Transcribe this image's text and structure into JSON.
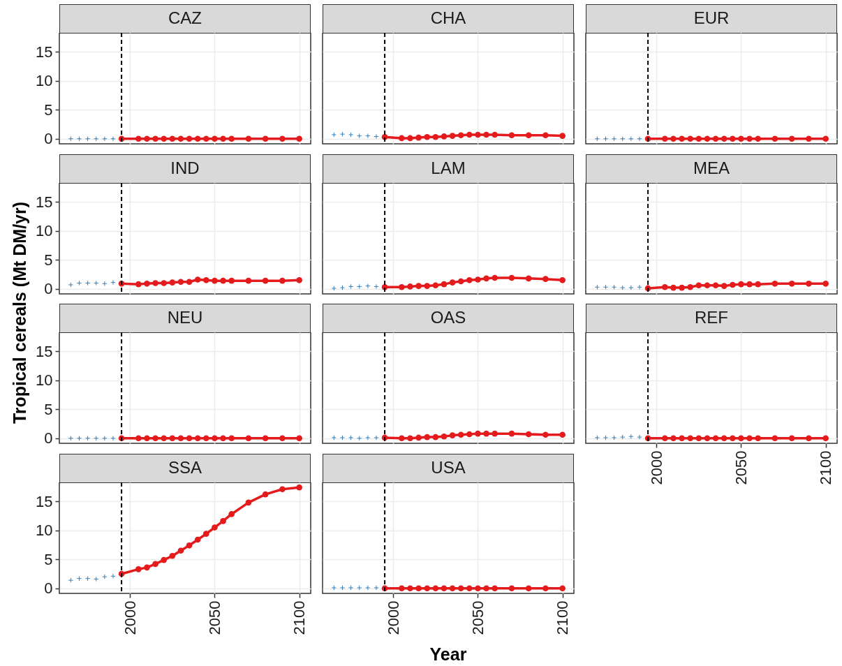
{
  "chart_data": [
    {
      "type": "line",
      "title": "CAZ",
      "ylabel": "Tropical cereals (Mt DM/yr)",
      "xlim": [
        1958.25,
        2106.75
      ],
      "xticks": [
        2000,
        2050,
        2100
      ],
      "ylim": [
        -0.87,
        18.27
      ],
      "yticks": [
        0,
        5,
        10,
        15
      ],
      "grid": true,
      "tick_labels": "y",
      "ref_lines": [
        {
          "axis": "x",
          "value": 1995,
          "color": "#000000",
          "line_style": "dashed"
        }
      ],
      "series": [
        {
          "type": "scatter",
          "marker": "cross",
          "color": "#377eb8",
          "x": [
            1965,
            1970,
            1975,
            1980,
            1985,
            1990
          ],
          "values": [
            0,
            0,
            0,
            0,
            0,
            0
          ]
        },
        {
          "type": "line",
          "marker": "circle",
          "color": "#e41a1c",
          "x": [
            1995,
            2005,
            2010,
            2015,
            2020,
            2025,
            2030,
            2035,
            2040,
            2045,
            2050,
            2055,
            2060,
            2070,
            2080,
            2090,
            2100
          ],
          "values": [
            0,
            0,
            0,
            0,
            0,
            0,
            0,
            0,
            0,
            0,
            0,
            0,
            0,
            0,
            0,
            0,
            0
          ]
        }
      ]
    },
    {
      "type": "line",
      "title": "CHA",
      "xlim": [
        1958.25,
        2106.75
      ],
      "xticks": [
        2000,
        2050,
        2100
      ],
      "ylim": [
        -0.87,
        18.27
      ],
      "yticks": [
        0,
        5,
        10,
        15
      ],
      "grid": true,
      "tick_labels": false,
      "ref_lines": [
        {
          "axis": "x",
          "value": 1995,
          "color": "#000000",
          "line_style": "dashed"
        }
      ],
      "series": [
        {
          "type": "scatter",
          "marker": "cross",
          "color": "#377eb8",
          "x": [
            1965,
            1970,
            1975,
            1980,
            1985,
            1990
          ],
          "values": [
            0.7,
            0.8,
            0.7,
            0.5,
            0.5,
            0.4
          ]
        },
        {
          "type": "line",
          "marker": "circle",
          "color": "#e41a1c",
          "x": [
            1995,
            2005,
            2010,
            2015,
            2020,
            2025,
            2030,
            2035,
            2040,
            2045,
            2050,
            2055,
            2060,
            2070,
            2080,
            2090,
            2100
          ],
          "values": [
            0.3,
            0.1,
            0.1,
            0.2,
            0.3,
            0.3,
            0.4,
            0.5,
            0.6,
            0.7,
            0.7,
            0.7,
            0.7,
            0.6,
            0.6,
            0.6,
            0.5
          ]
        }
      ]
    },
    {
      "type": "line",
      "title": "EUR",
      "xlim": [
        1958.25,
        2106.75
      ],
      "xticks": [
        2000,
        2050,
        2100
      ],
      "ylim": [
        -0.87,
        18.27
      ],
      "yticks": [
        0,
        5,
        10,
        15
      ],
      "grid": true,
      "tick_labels": false,
      "ref_lines": [
        {
          "axis": "x",
          "value": 1995,
          "color": "#000000",
          "line_style": "dashed"
        }
      ],
      "series": [
        {
          "type": "scatter",
          "marker": "cross",
          "color": "#377eb8",
          "x": [
            1965,
            1970,
            1975,
            1980,
            1985,
            1990
          ],
          "values": [
            0,
            0,
            0,
            0,
            0,
            0
          ]
        },
        {
          "type": "line",
          "marker": "circle",
          "color": "#e41a1c",
          "x": [
            1995,
            2005,
            2010,
            2015,
            2020,
            2025,
            2030,
            2035,
            2040,
            2045,
            2050,
            2055,
            2060,
            2070,
            2080,
            2090,
            2100
          ],
          "values": [
            0,
            0,
            0,
            0,
            0,
            0,
            0,
            0,
            0,
            0,
            0,
            0,
            0,
            0,
            0,
            0,
            0
          ]
        }
      ]
    },
    {
      "type": "line",
      "title": "IND",
      "xlim": [
        1958.25,
        2106.75
      ],
      "xticks": [
        2000,
        2050,
        2100
      ],
      "ylim": [
        -0.87,
        18.27
      ],
      "yticks": [
        0,
        5,
        10,
        15
      ],
      "grid": true,
      "tick_labels": "y",
      "ref_lines": [
        {
          "axis": "x",
          "value": 1995,
          "color": "#000000",
          "line_style": "dashed"
        }
      ],
      "series": [
        {
          "type": "scatter",
          "marker": "cross",
          "color": "#377eb8",
          "x": [
            1965,
            1970,
            1975,
            1980,
            1985,
            1990
          ],
          "values": [
            0.7,
            1.0,
            1.0,
            1.0,
            0.9,
            1.1
          ]
        },
        {
          "type": "line",
          "marker": "circle",
          "color": "#e41a1c",
          "x": [
            1995,
            2005,
            2010,
            2015,
            2020,
            2025,
            2030,
            2035,
            2040,
            2045,
            2050,
            2055,
            2060,
            2070,
            2080,
            2090,
            2100
          ],
          "values": [
            0.9,
            0.8,
            0.9,
            1.0,
            1.0,
            1.1,
            1.2,
            1.2,
            1.6,
            1.5,
            1.4,
            1.4,
            1.4,
            1.4,
            1.4,
            1.4,
            1.5
          ]
        }
      ]
    },
    {
      "type": "line",
      "title": "LAM",
      "xlim": [
        1958.25,
        2106.75
      ],
      "xticks": [
        2000,
        2050,
        2100
      ],
      "ylim": [
        -0.87,
        18.27
      ],
      "yticks": [
        0,
        5,
        10,
        15
      ],
      "grid": true,
      "tick_labels": false,
      "ref_lines": [
        {
          "axis": "x",
          "value": 1995,
          "color": "#000000",
          "line_style": "dashed"
        }
      ],
      "series": [
        {
          "type": "scatter",
          "marker": "cross",
          "color": "#377eb8",
          "x": [
            1965,
            1970,
            1975,
            1980,
            1985,
            1990
          ],
          "values": [
            0.1,
            0.2,
            0.4,
            0.4,
            0.5,
            0.4
          ]
        },
        {
          "type": "line",
          "marker": "circle",
          "color": "#e41a1c",
          "x": [
            1995,
            2005,
            2010,
            2015,
            2020,
            2025,
            2030,
            2035,
            2040,
            2045,
            2050,
            2055,
            2060,
            2070,
            2080,
            2090,
            2100
          ],
          "values": [
            0.3,
            0.3,
            0.4,
            0.5,
            0.5,
            0.6,
            0.8,
            1.1,
            1.3,
            1.5,
            1.6,
            1.8,
            1.9,
            1.9,
            1.8,
            1.7,
            1.5
          ]
        }
      ]
    },
    {
      "type": "line",
      "title": "MEA",
      "xlim": [
        1958.25,
        2106.75
      ],
      "xticks": [
        2000,
        2050,
        2100
      ],
      "ylim": [
        -0.87,
        18.27
      ],
      "yticks": [
        0,
        5,
        10,
        15
      ],
      "grid": true,
      "tick_labels": false,
      "ref_lines": [
        {
          "axis": "x",
          "value": 1995,
          "color": "#000000",
          "line_style": "dashed"
        }
      ],
      "series": [
        {
          "type": "scatter",
          "marker": "cross",
          "color": "#377eb8",
          "x": [
            1965,
            1970,
            1975,
            1980,
            1985,
            1990
          ],
          "values": [
            0.3,
            0.3,
            0.3,
            0.2,
            0.2,
            0.3
          ]
        },
        {
          "type": "line",
          "marker": "circle",
          "color": "#e41a1c",
          "x": [
            1995,
            2005,
            2010,
            2015,
            2020,
            2025,
            2030,
            2035,
            2040,
            2045,
            2050,
            2055,
            2060,
            2070,
            2080,
            2090,
            2100
          ],
          "values": [
            0.1,
            0.3,
            0.2,
            0.2,
            0.3,
            0.6,
            0.6,
            0.6,
            0.5,
            0.7,
            0.8,
            0.8,
            0.8,
            0.9,
            0.9,
            0.9,
            0.9
          ]
        }
      ]
    },
    {
      "type": "line",
      "title": "NEU",
      "xlim": [
        1958.25,
        2106.75
      ],
      "xticks": [
        2000,
        2050,
        2100
      ],
      "ylim": [
        -0.87,
        18.27
      ],
      "yticks": [
        0,
        5,
        10,
        15
      ],
      "grid": true,
      "tick_labels": "y",
      "ref_lines": [
        {
          "axis": "x",
          "value": 1995,
          "color": "#000000",
          "line_style": "dashed"
        }
      ],
      "series": [
        {
          "type": "scatter",
          "marker": "cross",
          "color": "#377eb8",
          "x": [
            1965,
            1970,
            1975,
            1980,
            1985,
            1990
          ],
          "values": [
            0,
            0,
            0,
            0,
            0,
            0
          ]
        },
        {
          "type": "line",
          "marker": "circle",
          "color": "#e41a1c",
          "x": [
            1995,
            2005,
            2010,
            2015,
            2020,
            2025,
            2030,
            2035,
            2040,
            2045,
            2050,
            2055,
            2060,
            2070,
            2080,
            2090,
            2100
          ],
          "values": [
            0,
            0,
            0,
            0,
            0,
            0,
            0,
            0,
            0,
            0,
            0,
            0,
            0,
            0,
            0,
            0,
            0
          ]
        }
      ]
    },
    {
      "type": "line",
      "title": "OAS",
      "xlim": [
        1958.25,
        2106.75
      ],
      "xticks": [
        2000,
        2050,
        2100
      ],
      "ylim": [
        -0.87,
        18.27
      ],
      "yticks": [
        0,
        5,
        10,
        15
      ],
      "grid": true,
      "tick_labels": false,
      "ref_lines": [
        {
          "axis": "x",
          "value": 1995,
          "color": "#000000",
          "line_style": "dashed"
        }
      ],
      "series": [
        {
          "type": "scatter",
          "marker": "cross",
          "color": "#377eb8",
          "x": [
            1965,
            1970,
            1975,
            1980,
            1985,
            1990
          ],
          "values": [
            0.1,
            0.1,
            0.1,
            0,
            0.1,
            0.1
          ]
        },
        {
          "type": "line",
          "marker": "circle",
          "color": "#e41a1c",
          "x": [
            1995,
            2005,
            2010,
            2015,
            2020,
            2025,
            2030,
            2035,
            2040,
            2045,
            2050,
            2055,
            2060,
            2070,
            2080,
            2090,
            2100
          ],
          "values": [
            0.1,
            0,
            0,
            0.1,
            0.2,
            0.2,
            0.3,
            0.5,
            0.6,
            0.7,
            0.8,
            0.8,
            0.8,
            0.8,
            0.7,
            0.6,
            0.6
          ]
        }
      ]
    },
    {
      "type": "line",
      "title": "REF",
      "xlim": [
        1958.25,
        2106.75
      ],
      "xticks": [
        2000,
        2050,
        2100
      ],
      "ylim": [
        -0.87,
        18.27
      ],
      "yticks": [
        0,
        5,
        10,
        15
      ],
      "grid": true,
      "tick_labels": "x",
      "ref_lines": [
        {
          "axis": "x",
          "value": 1995,
          "color": "#000000",
          "line_style": "dashed"
        }
      ],
      "series": [
        {
          "type": "scatter",
          "marker": "cross",
          "color": "#377eb8",
          "x": [
            1965,
            1970,
            1975,
            1980,
            1985,
            1990
          ],
          "values": [
            0.1,
            0.1,
            0.1,
            0.2,
            0.3,
            0.2
          ]
        },
        {
          "type": "line",
          "marker": "circle",
          "color": "#e41a1c",
          "x": [
            1995,
            2005,
            2010,
            2015,
            2020,
            2025,
            2030,
            2035,
            2040,
            2045,
            2050,
            2055,
            2060,
            2070,
            2080,
            2090,
            2100
          ],
          "values": [
            0,
            0,
            0,
            0,
            0,
            0,
            0,
            0,
            0,
            0,
            0,
            0,
            0,
            0,
            0,
            0,
            0
          ]
        }
      ]
    },
    {
      "type": "line",
      "title": "SSA",
      "xlim": [
        1958.25,
        2106.75
      ],
      "xticks": [
        2000,
        2050,
        2100
      ],
      "ylim": [
        -0.87,
        18.27
      ],
      "yticks": [
        0,
        5,
        10,
        15
      ],
      "grid": true,
      "ref_lines": [
        {
          "axis": "x",
          "value": 1995,
          "color": "#000000",
          "line_style": "dashed"
        }
      ],
      "series": [
        {
          "type": "scatter",
          "marker": "cross",
          "color": "#377eb8",
          "x": [
            1965,
            1970,
            1975,
            1980,
            1985,
            1990
          ],
          "values": [
            1.4,
            1.7,
            1.7,
            1.6,
            2.0,
            2.1
          ]
        },
        {
          "type": "line",
          "marker": "circle",
          "color": "#e41a1c",
          "x": [
            1995,
            2005,
            2010,
            2015,
            2020,
            2025,
            2030,
            2035,
            2040,
            2045,
            2050,
            2055,
            2060,
            2070,
            2080,
            2090,
            2100
          ],
          "values": [
            2.5,
            3.3,
            3.6,
            4.2,
            4.9,
            5.6,
            6.5,
            7.4,
            8.4,
            9.4,
            10.5,
            11.6,
            12.8,
            14.8,
            16.2,
            17.1,
            17.4
          ]
        }
      ]
    },
    {
      "type": "line",
      "title": "USA",
      "xlabel": "Year",
      "xlim": [
        1958.25,
        2106.75
      ],
      "xticks": [
        2000,
        2050,
        2100
      ],
      "ylim": [
        -0.87,
        18.27
      ],
      "yticks": [
        0,
        5,
        10,
        15
      ],
      "grid": true,
      "tick_labels": "x",
      "ref_lines": [
        {
          "axis": "x",
          "value": 1995,
          "color": "#000000",
          "line_style": "dashed"
        }
      ],
      "series": [
        {
          "type": "scatter",
          "marker": "cross",
          "color": "#377eb8",
          "x": [
            1965,
            1970,
            1975,
            1980,
            1985,
            1990
          ],
          "values": [
            0.1,
            0.1,
            0.1,
            0.1,
            0.1,
            0.1
          ]
        },
        {
          "type": "line",
          "marker": "circle",
          "color": "#e41a1c",
          "x": [
            1995,
            2005,
            2010,
            2015,
            2020,
            2025,
            2030,
            2035,
            2040,
            2045,
            2050,
            2055,
            2060,
            2070,
            2080,
            2090,
            2100
          ],
          "values": [
            0,
            0,
            0,
            0,
            0,
            0,
            0,
            0,
            0,
            0,
            0,
            0,
            0,
            0,
            0,
            0,
            0
          ]
        }
      ]
    }
  ]
}
